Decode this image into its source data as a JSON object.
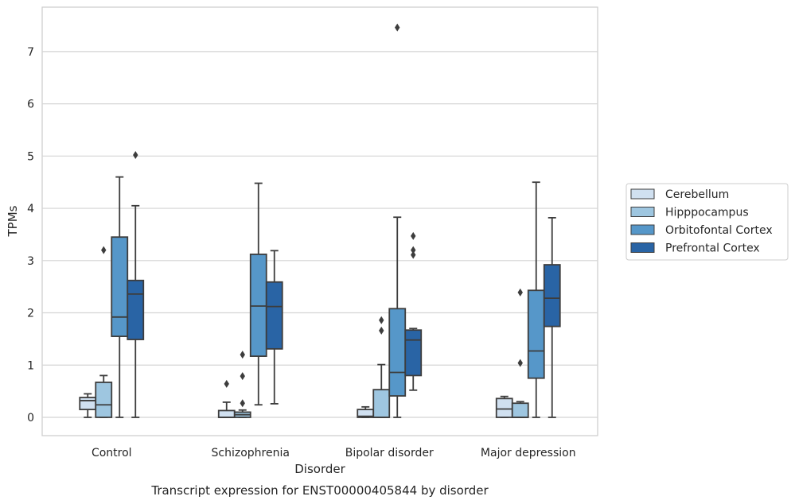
{
  "chart_data": {
    "type": "box",
    "title": "",
    "caption": "Transcript expression for ENST00000405844 by disorder",
    "xlabel": "Disorder",
    "ylabel": "TPMs",
    "ylim": [
      -0.35,
      7.85
    ],
    "yticks": [
      0,
      1,
      2,
      3,
      4,
      5,
      6,
      7
    ],
    "grid": "horizontal",
    "legend_position": "right",
    "categories": [
      "Control",
      "Schizophrenia",
      "Bipolar disorder",
      "Major depression"
    ],
    "series": [
      {
        "name": "Cerebellum",
        "color": "#d0e0f0",
        "boxes": [
          {
            "min": 0.0,
            "q1": 0.15,
            "median": 0.32,
            "q3": 0.38,
            "max": 0.45,
            "outliers": []
          },
          {
            "min": 0.0,
            "q1": 0.0,
            "median": 0.0,
            "q3": 0.13,
            "max": 0.29,
            "outliers": [
              0.64
            ]
          },
          {
            "min": 0.0,
            "q1": 0.0,
            "median": 0.02,
            "q3": 0.15,
            "max": 0.2,
            "outliers": []
          },
          {
            "min": 0.0,
            "q1": 0.0,
            "median": 0.16,
            "q3": 0.36,
            "max": 0.4,
            "outliers": []
          }
        ]
      },
      {
        "name": "Hipppocampus",
        "color": "#9ec6e0",
        "boxes": [
          {
            "min": 0.0,
            "q1": 0.0,
            "median": 0.24,
            "q3": 0.67,
            "max": 0.8,
            "outliers": [
              3.2
            ]
          },
          {
            "min": 0.0,
            "q1": 0.0,
            "median": 0.05,
            "q3": 0.1,
            "max": 0.14,
            "outliers": [
              0.27,
              0.79,
              1.2
            ]
          },
          {
            "min": 0.0,
            "q1": 0.0,
            "median": 0.0,
            "q3": 0.53,
            "max": 1.01,
            "outliers": [
              1.66,
              1.86
            ]
          },
          {
            "min": 0.0,
            "q1": 0.0,
            "median": 0.0,
            "q3": 0.27,
            "max": 0.3,
            "outliers": [
              1.04,
              2.39
            ]
          }
        ]
      },
      {
        "name": "Orbitofontal Cortex",
        "color": "#5697c9",
        "boxes": [
          {
            "min": 0.0,
            "q1": 1.55,
            "median": 1.92,
            "q3": 3.45,
            "max": 4.6,
            "outliers": []
          },
          {
            "min": 0.24,
            "q1": 1.17,
            "median": 2.13,
            "q3": 3.12,
            "max": 4.48,
            "outliers": []
          },
          {
            "min": 0.0,
            "q1": 0.41,
            "median": 0.86,
            "q3": 2.08,
            "max": 3.83,
            "outliers": [
              7.46
            ]
          },
          {
            "min": 0.0,
            "q1": 0.75,
            "median": 1.27,
            "q3": 2.43,
            "max": 4.5,
            "outliers": []
          }
        ]
      },
      {
        "name": "Prefrontal Cortex",
        "color": "#2964a5",
        "boxes": [
          {
            "min": 0.0,
            "q1": 1.49,
            "median": 2.36,
            "q3": 2.62,
            "max": 4.05,
            "outliers": [
              5.02
            ]
          },
          {
            "min": 0.26,
            "q1": 1.31,
            "median": 2.12,
            "q3": 2.59,
            "max": 3.19,
            "outliers": []
          },
          {
            "min": 0.52,
            "q1": 0.8,
            "median": 1.48,
            "q3": 1.67,
            "max": 1.7,
            "outliers": [
              3.11,
              3.2,
              3.47
            ]
          },
          {
            "min": 0.0,
            "q1": 1.74,
            "median": 2.28,
            "q3": 2.92,
            "max": 3.82,
            "outliers": []
          }
        ]
      }
    ]
  }
}
